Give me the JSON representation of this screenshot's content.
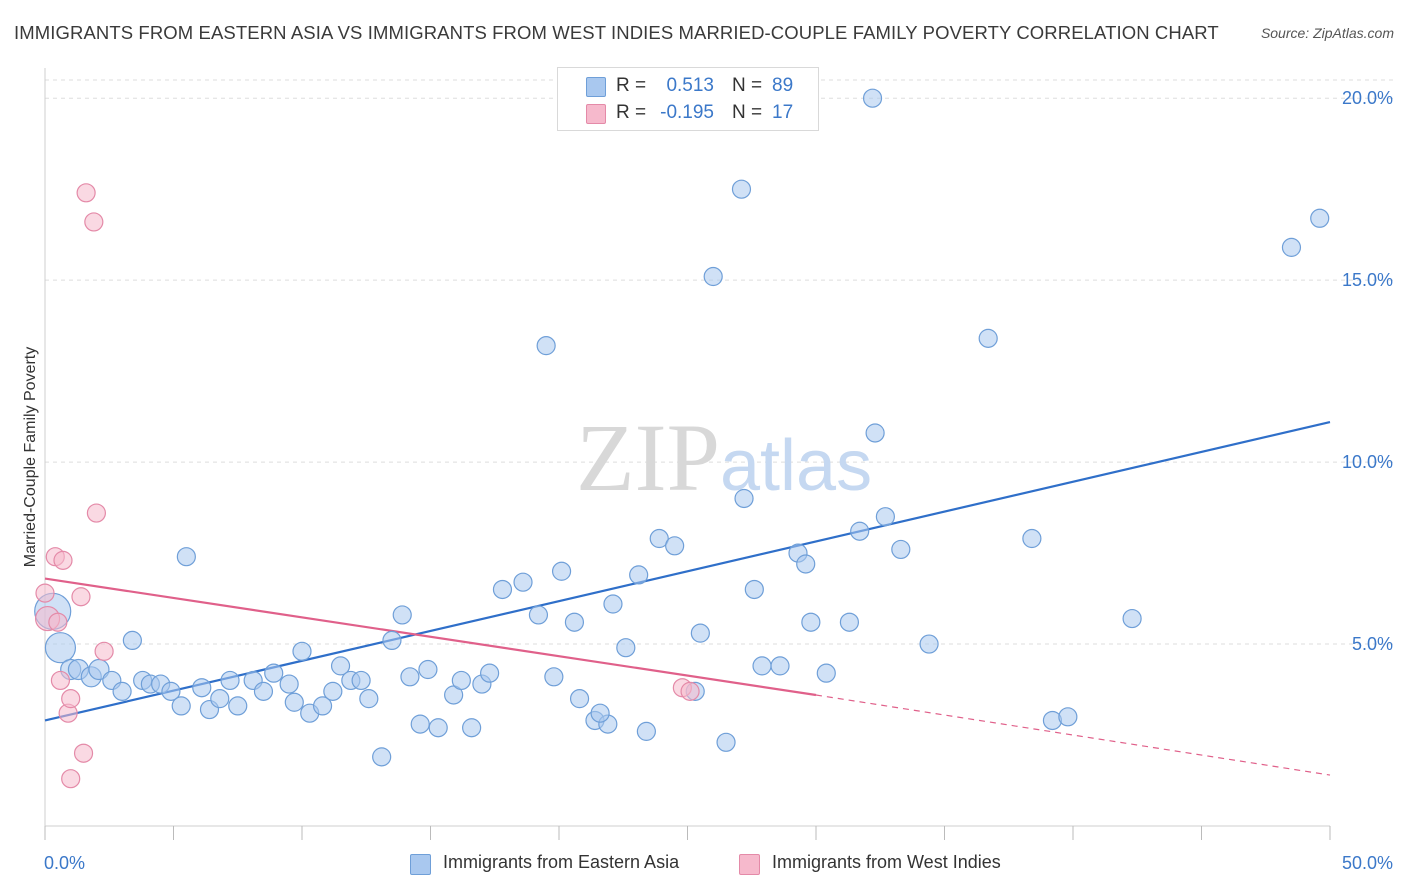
{
  "header": {
    "title": "IMMIGRANTS FROM EASTERN ASIA VS IMMIGRANTS FROM WEST INDIES MARRIED-COUPLE FAMILY POVERTY CORRELATION CHART",
    "source": "Source: ZipAtlas.com"
  },
  "watermark": {
    "zip": "ZIP",
    "atlas": "atlas"
  },
  "legend": {
    "rows": [
      {
        "r_label": "R =",
        "r_value": "0.513",
        "n_label": "N =",
        "n_value": "89"
      },
      {
        "r_label": "R =",
        "r_value": "-0.195",
        "n_label": "N =",
        "n_value": "17"
      }
    ]
  },
  "bottom_legend": {
    "series1": "Immigrants from Eastern Asia",
    "series2": "Immigrants from West Indies"
  },
  "colors": {
    "blue_fill": "#a9c8ef",
    "blue_stroke": "#6f9fd8",
    "blue_line": "#2f6fc9",
    "pink_fill": "#f6b9cc",
    "pink_stroke": "#e48aa8",
    "pink_line": "#e0608a",
    "tick_text": "#3b78c9",
    "grid": "#dddddd"
  },
  "chart_data": {
    "type": "scatter",
    "title": "IMMIGRANTS FROM EASTERN ASIA VS IMMIGRANTS FROM WEST INDIES MARRIED-COUPLE FAMILY POVERTY CORRELATION CHART",
    "xlabel": "",
    "ylabel": "Married-Couple Family Poverty",
    "xlim": [
      0,
      50
    ],
    "ylim": [
      0,
      20.5
    ],
    "x_tick_labels": [
      "0.0%",
      "50.0%"
    ],
    "y_ticks": [
      5,
      10,
      15,
      20
    ],
    "y_tick_labels": [
      "5.0%",
      "10.0%",
      "15.0%",
      "20.0%"
    ],
    "grid": "horizontal dashed",
    "legend_position": "top-center",
    "series": [
      {
        "name": "Immigrants from Eastern Asia",
        "color": "#a9c8ef",
        "trend": {
          "x": [
            0,
            50
          ],
          "y": [
            2.9,
            11.1
          ]
        },
        "points": [
          {
            "x": 0.3,
            "y": 5.9,
            "s": 18
          },
          {
            "x": 0.6,
            "y": 4.9,
            "s": 15
          },
          {
            "x": 1.0,
            "y": 4.3,
            "s": 10
          },
          {
            "x": 1.3,
            "y": 4.3,
            "s": 10
          },
          {
            "x": 1.8,
            "y": 4.1,
            "s": 10
          },
          {
            "x": 2.1,
            "y": 4.3,
            "s": 10
          },
          {
            "x": 2.6,
            "y": 4.0,
            "s": 9
          },
          {
            "x": 3.0,
            "y": 3.7,
            "s": 9
          },
          {
            "x": 3.4,
            "y": 5.1,
            "s": 9
          },
          {
            "x": 3.8,
            "y": 4.0,
            "s": 9
          },
          {
            "x": 4.1,
            "y": 3.9,
            "s": 9
          },
          {
            "x": 4.5,
            "y": 3.9,
            "s": 9
          },
          {
            "x": 4.9,
            "y": 3.7,
            "s": 9
          },
          {
            "x": 5.3,
            "y": 3.3,
            "s": 9
          },
          {
            "x": 5.5,
            "y": 7.4,
            "s": 9
          },
          {
            "x": 6.1,
            "y": 3.8,
            "s": 9
          },
          {
            "x": 6.4,
            "y": 3.2,
            "s": 9
          },
          {
            "x": 6.8,
            "y": 3.5,
            "s": 9
          },
          {
            "x": 7.2,
            "y": 4.0,
            "s": 9
          },
          {
            "x": 7.5,
            "y": 3.3,
            "s": 9
          },
          {
            "x": 8.1,
            "y": 4.0,
            "s": 9
          },
          {
            "x": 8.5,
            "y": 3.7,
            "s": 9
          },
          {
            "x": 8.9,
            "y": 4.2,
            "s": 9
          },
          {
            "x": 9.5,
            "y": 3.9,
            "s": 9
          },
          {
            "x": 9.7,
            "y": 3.4,
            "s": 9
          },
          {
            "x": 10.0,
            "y": 4.8,
            "s": 9
          },
          {
            "x": 10.3,
            "y": 3.1,
            "s": 9
          },
          {
            "x": 10.8,
            "y": 3.3,
            "s": 9
          },
          {
            "x": 11.2,
            "y": 3.7,
            "s": 9
          },
          {
            "x": 11.5,
            "y": 4.4,
            "s": 9
          },
          {
            "x": 11.9,
            "y": 4.0,
            "s": 9
          },
          {
            "x": 12.3,
            "y": 4.0,
            "s": 9
          },
          {
            "x": 12.6,
            "y": 3.5,
            "s": 9
          },
          {
            "x": 13.1,
            "y": 1.9,
            "s": 9
          },
          {
            "x": 13.5,
            "y": 5.1,
            "s": 9
          },
          {
            "x": 13.9,
            "y": 5.8,
            "s": 9
          },
          {
            "x": 14.2,
            "y": 4.1,
            "s": 9
          },
          {
            "x": 14.6,
            "y": 2.8,
            "s": 9
          },
          {
            "x": 14.9,
            "y": 4.3,
            "s": 9
          },
          {
            "x": 15.3,
            "y": 2.7,
            "s": 9
          },
          {
            "x": 15.9,
            "y": 3.6,
            "s": 9
          },
          {
            "x": 16.2,
            "y": 4.0,
            "s": 9
          },
          {
            "x": 16.6,
            "y": 2.7,
            "s": 9
          },
          {
            "x": 17.0,
            "y": 3.9,
            "s": 9
          },
          {
            "x": 17.3,
            "y": 4.2,
            "s": 9
          },
          {
            "x": 17.8,
            "y": 6.5,
            "s": 9
          },
          {
            "x": 18.6,
            "y": 6.7,
            "s": 9
          },
          {
            "x": 19.2,
            "y": 5.8,
            "s": 9
          },
          {
            "x": 19.5,
            "y": 13.2,
            "s": 9
          },
          {
            "x": 19.8,
            "y": 4.1,
            "s": 9
          },
          {
            "x": 20.1,
            "y": 7.0,
            "s": 9
          },
          {
            "x": 20.6,
            "y": 5.6,
            "s": 9
          },
          {
            "x": 20.8,
            "y": 3.5,
            "s": 9
          },
          {
            "x": 21.4,
            "y": 2.9,
            "s": 9
          },
          {
            "x": 21.9,
            "y": 2.8,
            "s": 9
          },
          {
            "x": 22.1,
            "y": 6.1,
            "s": 9
          },
          {
            "x": 22.6,
            "y": 4.9,
            "s": 9
          },
          {
            "x": 23.1,
            "y": 6.9,
            "s": 9
          },
          {
            "x": 23.4,
            "y": 2.6,
            "s": 9
          },
          {
            "x": 23.9,
            "y": 7.9,
            "s": 9
          },
          {
            "x": 24.5,
            "y": 7.7,
            "s": 9
          },
          {
            "x": 25.3,
            "y": 3.7,
            "s": 9
          },
          {
            "x": 25.5,
            "y": 5.3,
            "s": 9
          },
          {
            "x": 26.0,
            "y": 15.1,
            "s": 9
          },
          {
            "x": 26.5,
            "y": 2.3,
            "s": 9
          },
          {
            "x": 27.1,
            "y": 17.5,
            "s": 9
          },
          {
            "x": 27.6,
            "y": 6.5,
            "s": 9
          },
          {
            "x": 27.9,
            "y": 4.4,
            "s": 9
          },
          {
            "x": 28.6,
            "y": 4.4,
            "s": 9
          },
          {
            "x": 29.3,
            "y": 7.5,
            "s": 9
          },
          {
            "x": 29.6,
            "y": 7.2,
            "s": 9
          },
          {
            "x": 29.8,
            "y": 5.6,
            "s": 9
          },
          {
            "x": 30.4,
            "y": 4.2,
            "s": 9
          },
          {
            "x": 31.3,
            "y": 5.6,
            "s": 9
          },
          {
            "x": 31.7,
            "y": 8.1,
            "s": 9
          },
          {
            "x": 32.2,
            "y": 20.0,
            "s": 9
          },
          {
            "x": 32.3,
            "y": 10.8,
            "s": 9
          },
          {
            "x": 32.7,
            "y": 8.5,
            "s": 9
          },
          {
            "x": 33.3,
            "y": 7.6,
            "s": 9
          },
          {
            "x": 27.2,
            "y": 9.0,
            "s": 9
          },
          {
            "x": 34.4,
            "y": 5.0,
            "s": 9
          },
          {
            "x": 36.7,
            "y": 13.4,
            "s": 9
          },
          {
            "x": 38.4,
            "y": 7.9,
            "s": 9
          },
          {
            "x": 39.2,
            "y": 2.9,
            "s": 9
          },
          {
            "x": 39.8,
            "y": 3.0,
            "s": 9
          },
          {
            "x": 42.3,
            "y": 5.7,
            "s": 9
          },
          {
            "x": 48.5,
            "y": 15.9,
            "s": 9
          },
          {
            "x": 49.6,
            "y": 16.7,
            "s": 9
          },
          {
            "x": 21.6,
            "y": 3.1,
            "s": 9
          }
        ]
      },
      {
        "name": "Immigrants from West Indies",
        "color": "#f6b9cc",
        "trend": {
          "x": [
            0,
            30
          ],
          "y": [
            6.8,
            3.6
          ],
          "dashed_to": {
            "x": 50,
            "y": 1.4
          }
        },
        "points": [
          {
            "x": 0.0,
            "y": 6.4,
            "s": 9
          },
          {
            "x": 0.1,
            "y": 5.7,
            "s": 12
          },
          {
            "x": 0.4,
            "y": 7.4,
            "s": 9
          },
          {
            "x": 0.5,
            "y": 5.6,
            "s": 9
          },
          {
            "x": 0.6,
            "y": 4.0,
            "s": 9
          },
          {
            "x": 0.7,
            "y": 7.3,
            "s": 9
          },
          {
            "x": 0.9,
            "y": 3.1,
            "s": 9
          },
          {
            "x": 1.0,
            "y": 3.5,
            "s": 9
          },
          {
            "x": 1.0,
            "y": 1.3,
            "s": 9
          },
          {
            "x": 1.4,
            "y": 6.3,
            "s": 9
          },
          {
            "x": 1.5,
            "y": 2.0,
            "s": 9
          },
          {
            "x": 1.6,
            "y": 17.4,
            "s": 9
          },
          {
            "x": 1.9,
            "y": 16.6,
            "s": 9
          },
          {
            "x": 2.0,
            "y": 8.6,
            "s": 9
          },
          {
            "x": 2.3,
            "y": 4.8,
            "s": 9
          },
          {
            "x": 24.8,
            "y": 3.8,
            "s": 9
          },
          {
            "x": 25.1,
            "y": 3.7,
            "s": 9
          }
        ]
      }
    ]
  }
}
